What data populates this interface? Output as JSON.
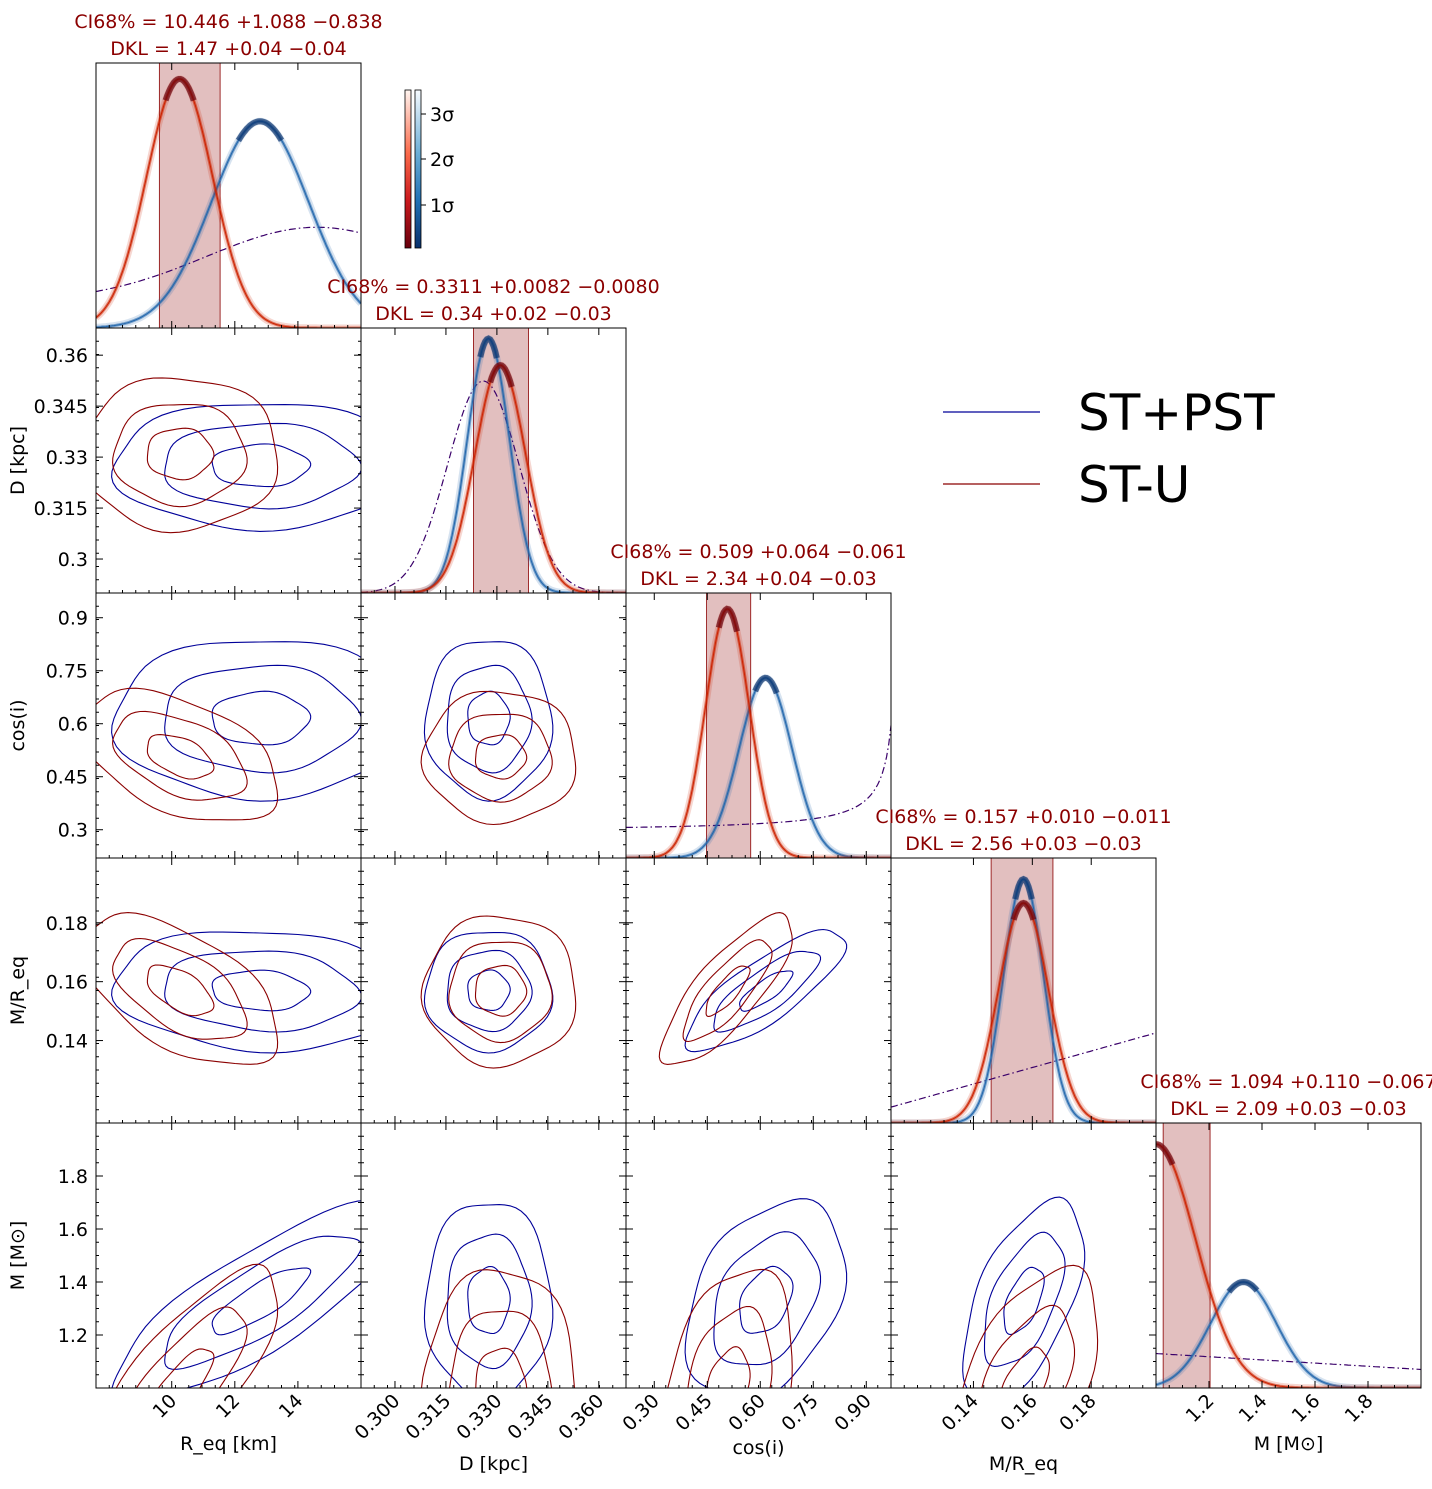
{
  "chart_data": {
    "type": "corner",
    "parameters": [
      {
        "key": "Req",
        "label": "R_eq [km]",
        "range": [
          7.6,
          16.0
        ],
        "ticks": [
          10,
          12,
          14
        ],
        "tick_labels": [
          "10",
          "12",
          "14"
        ]
      },
      {
        "key": "D",
        "label": "D [kpc]",
        "range": [
          0.29,
          0.368
        ],
        "ticks": [
          0.3,
          0.315,
          0.33,
          0.345,
          0.36
        ],
        "tick_labels": [
          "0.300",
          "0.315",
          "0.330",
          "0.345",
          "0.360"
        ],
        "y_tick_labels": [
          "0.3",
          "0.315",
          "0.33",
          "0.345",
          "0.36"
        ]
      },
      {
        "key": "cosi",
        "label": "cos(i)",
        "range": [
          0.22,
          0.97
        ],
        "ticks": [
          0.3,
          0.45,
          0.6,
          0.75,
          0.9
        ],
        "tick_labels": [
          "0.30",
          "0.45",
          "0.60",
          "0.75",
          "0.90"
        ],
        "y_tick_labels": [
          "0.3",
          "0.45",
          "0.6",
          "0.75",
          "0.9"
        ]
      },
      {
        "key": "MR",
        "label": "M/R_eq",
        "range": [
          0.112,
          0.202
        ],
        "ticks": [
          0.14,
          0.16,
          0.18
        ],
        "tick_labels": [
          "0.14",
          "0.16",
          "0.18"
        ]
      },
      {
        "key": "M",
        "label": "M [M⊙]",
        "range": [
          1.0,
          2.0
        ],
        "ticks": [
          1.2,
          1.4,
          1.6,
          1.8
        ],
        "tick_labels": [
          "1.2",
          "1.4",
          "1.6",
          "1.8"
        ]
      }
    ],
    "titles": [
      {
        "ci": "CI68% = 10.446 +1.088 −0.838",
        "dkl": "DKL = 1.47 +0.04 −0.04",
        "ci_range": [
          9.608,
          11.534
        ]
      },
      {
        "ci": "CI68% = 0.3311 +0.0082 −0.0080",
        "dkl": "DKL = 0.34 +0.02 −0.03",
        "ci_range": [
          0.3231,
          0.3393
        ]
      },
      {
        "ci": "CI68% = 0.509 +0.064 −0.061",
        "dkl": "DKL = 2.34 +0.04 −0.03",
        "ci_range": [
          0.448,
          0.573
        ]
      },
      {
        "ci": "CI68% = 0.157 +0.010 −0.011",
        "dkl": "DKL = 2.56 +0.03 −0.03",
        "ci_range": [
          0.146,
          0.167
        ]
      },
      {
        "ci": "CI68% = 1.094 +0.110 −0.067",
        "dkl": "DKL = 2.09 +0.03 −0.03",
        "ci_range": [
          1.027,
          1.204
        ]
      }
    ],
    "series": [
      {
        "name": "ST+PST",
        "color": "#000099",
        "fill_color": "#2166ac",
        "marginals": [
          {
            "mu": 12.8,
            "sigma": 1.55,
            "peak": 0.78
          },
          {
            "mu": 0.3275,
            "sigma": 0.0062,
            "peak": 0.96
          },
          {
            "mu": 0.615,
            "sigma": 0.075,
            "peak": 0.68
          },
          {
            "mu": 0.157,
            "sigma": 0.0068,
            "peak": 0.92
          },
          {
            "mu": 1.33,
            "sigma": 0.125,
            "peak": 0.4
          }
        ]
      },
      {
        "name": "ST-U",
        "color": "#8b0000",
        "fill_color": "#cc2200",
        "marginals": [
          {
            "mu": 10.25,
            "sigma": 1.05,
            "peak": 0.94
          },
          {
            "mu": 0.331,
            "sigma": 0.0075,
            "peak": 0.86
          },
          {
            "mu": 0.507,
            "sigma": 0.062,
            "peak": 0.94
          },
          {
            "mu": 0.157,
            "sigma": 0.0085,
            "peak": 0.83
          },
          {
            "mu": 1.0,
            "sigma": 0.15,
            "peak": 0.92
          }
        ]
      }
    ],
    "prior": {
      "color": "#3a006a",
      "style": "dashdot"
    },
    "colorbar": {
      "labels": [
        "1σ",
        "2σ",
        "3σ"
      ]
    },
    "legend": {
      "position": "top-right",
      "entries": [
        "ST+PST",
        "ST-U"
      ]
    }
  }
}
